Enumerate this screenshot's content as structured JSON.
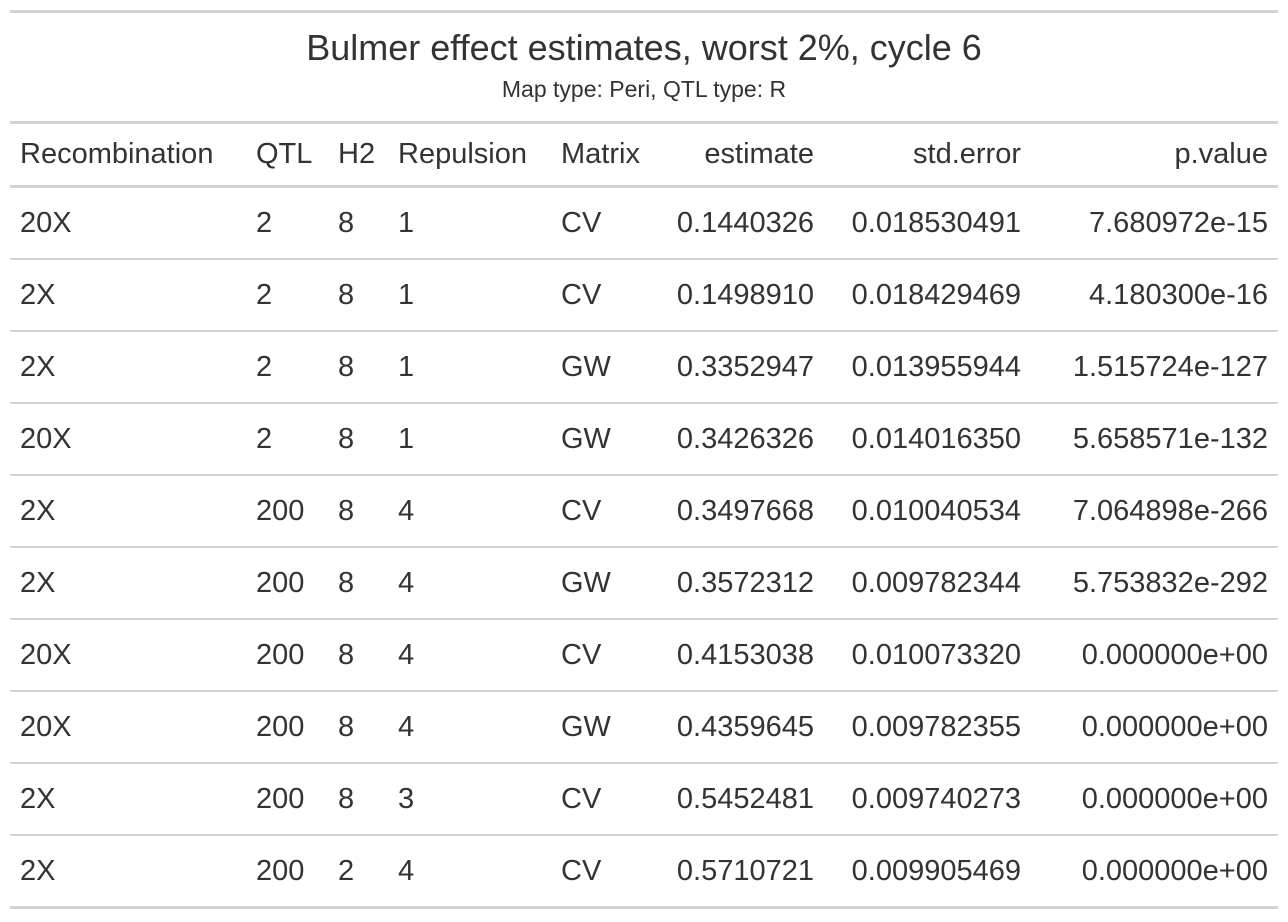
{
  "title": "Bulmer effect estimates, worst 2%, cycle 6",
  "subtitle": "Map type: Peri, QTL type: R",
  "columns": [
    "Recombination",
    "QTL",
    "H2",
    "Repulsion",
    "Matrix",
    "estimate",
    "std.error",
    "p.value"
  ],
  "rows": [
    [
      "20X",
      "2",
      "8",
      "1",
      "CV",
      "0.1440326",
      "0.018530491",
      "7.680972e-15"
    ],
    [
      "2X",
      "2",
      "8",
      "1",
      "CV",
      "0.1498910",
      "0.018429469",
      "4.180300e-16"
    ],
    [
      "2X",
      "2",
      "8",
      "1",
      "GW",
      "0.3352947",
      "0.013955944",
      "1.515724e-127"
    ],
    [
      "20X",
      "2",
      "8",
      "1",
      "GW",
      "0.3426326",
      "0.014016350",
      "5.658571e-132"
    ],
    [
      "2X",
      "200",
      "8",
      "4",
      "CV",
      "0.3497668",
      "0.010040534",
      "7.064898e-266"
    ],
    [
      "2X",
      "200",
      "8",
      "4",
      "GW",
      "0.3572312",
      "0.009782344",
      "5.753832e-292"
    ],
    [
      "20X",
      "200",
      "8",
      "4",
      "CV",
      "0.4153038",
      "0.010073320",
      "0.000000e+00"
    ],
    [
      "20X",
      "200",
      "8",
      "4",
      "GW",
      "0.4359645",
      "0.009782355",
      "0.000000e+00"
    ],
    [
      "2X",
      "200",
      "8",
      "3",
      "CV",
      "0.5452481",
      "0.009740273",
      "0.000000e+00"
    ],
    [
      "2X",
      "200",
      "2",
      "4",
      "CV",
      "0.5710721",
      "0.009905469",
      "0.000000e+00"
    ]
  ],
  "colors": {
    "text": "#333333",
    "rule": "#d3d3d3",
    "background": "#ffffff"
  }
}
